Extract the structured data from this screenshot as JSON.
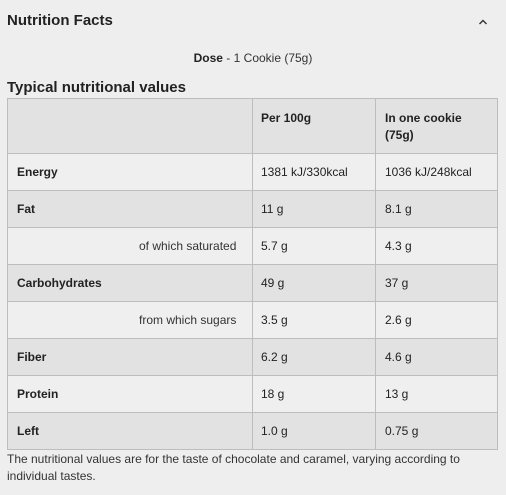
{
  "header": {
    "title": "Nutrition Facts"
  },
  "dose": {
    "label": "Dose",
    "separator": " - ",
    "value": "1 Cookie (75g)"
  },
  "section_title": "Typical nutritional values",
  "table": {
    "columns": [
      "",
      "Per 100g",
      "In one cookie\n(75g)"
    ],
    "rows": [
      {
        "name": "Energy",
        "sub": false,
        "per100": "1381 kJ/330kcal",
        "cookie": "1036 kJ/248kcal"
      },
      {
        "name": "Fat",
        "sub": false,
        "per100": "11 g",
        "cookie": "8.1 g"
      },
      {
        "name": "of which saturated",
        "sub": true,
        "per100": "5.7 g",
        "cookie": "4.3 g"
      },
      {
        "name": "Carbohydrates",
        "sub": false,
        "per100": "49 g",
        "cookie": "37 g"
      },
      {
        "name": "from which sugars",
        "sub": true,
        "per100": "3.5 g",
        "cookie": "2.6 g"
      },
      {
        "name": "Fiber",
        "sub": false,
        "per100": "6.2 g",
        "cookie": "4.6 g"
      },
      {
        "name": "Protein",
        "sub": false,
        "per100": "18 g",
        "cookie": "13 g"
      },
      {
        "name": "Left",
        "sub": false,
        "per100": "1.0 g",
        "cookie": "0.75 g"
      }
    ]
  },
  "footnote": "The nutritional values are for the taste of chocolate and caramel, varying according to individual tastes.",
  "icons": {
    "collapse": "chevron-up-icon"
  }
}
